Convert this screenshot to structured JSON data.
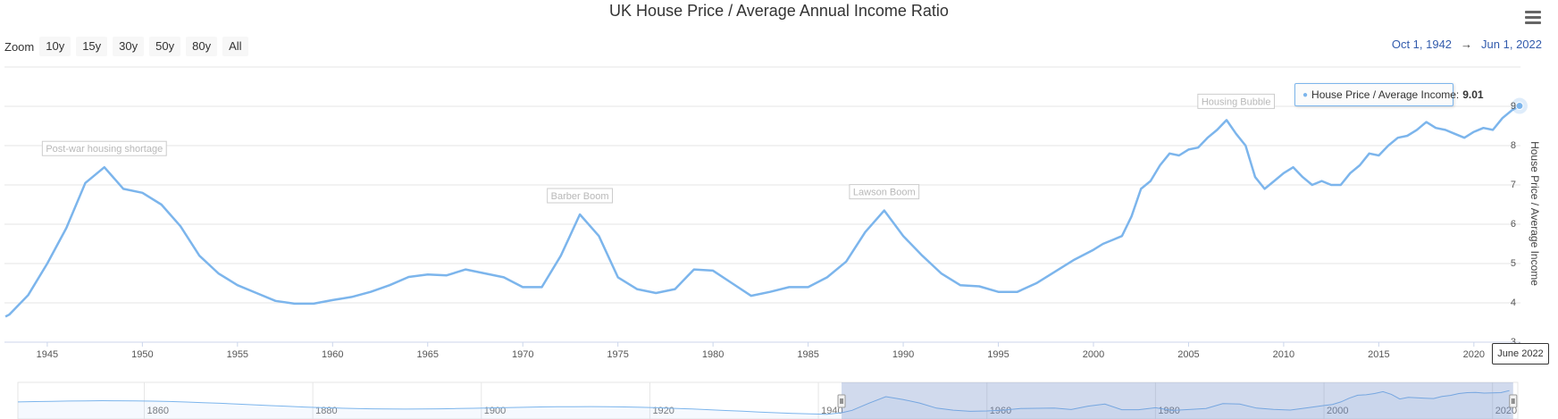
{
  "chart_data": {
    "type": "line",
    "title": "UK House Price / Average Annual Income Ratio",
    "ylabel": "House Price / Average Income",
    "xlim": [
      1942.75,
      2022.45
    ],
    "ylim": [
      3,
      10
    ],
    "y_ticks": [
      3,
      4,
      5,
      6,
      7,
      8,
      9
    ],
    "x_ticks": [
      1945,
      1950,
      1955,
      1960,
      1965,
      1970,
      1975,
      1980,
      1985,
      1990,
      1995,
      2000,
      2005,
      2010,
      2015,
      2020
    ],
    "grid": "horizontal",
    "series": [
      {
        "name": "House Price / Average Income",
        "color": "#7cb5ec",
        "x": [
          1942.8,
          1943,
          1944,
          1945,
          1946,
          1947,
          1948,
          1949,
          1950,
          1951,
          1952,
          1953,
          1954,
          1955,
          1956,
          1957,
          1958,
          1959,
          1960,
          1961,
          1962,
          1963,
          1964,
          1965,
          1966,
          1967,
          1968,
          1969,
          1970,
          1971,
          1972,
          1973,
          1974,
          1975,
          1976,
          1977,
          1978,
          1979,
          1980,
          1981,
          1982,
          1983,
          1984,
          1985,
          1986,
          1987,
          1988,
          1989,
          1990,
          1991,
          1992,
          1993,
          1994,
          1995,
          1996,
          1997,
          1998,
          1999,
          2000,
          2000.5,
          2001,
          2001.5,
          2002,
          2002.5,
          2003,
          2003.5,
          2004,
          2004.5,
          2005,
          2005.5,
          2006,
          2006.5,
          2007,
          2007.5,
          2008,
          2008.5,
          2009,
          2009.5,
          2010,
          2010.5,
          2011,
          2011.5,
          2012,
          2012.5,
          2013,
          2013.5,
          2014,
          2014.5,
          2015,
          2015.5,
          2016,
          2016.5,
          2017,
          2017.5,
          2018,
          2018.5,
          2019,
          2019.5,
          2020,
          2020.5,
          2021,
          2021.5,
          2022,
          2022.4
        ],
        "y": [
          3.65,
          3.7,
          4.2,
          5.0,
          5.9,
          7.05,
          7.45,
          6.9,
          6.8,
          6.5,
          5.95,
          5.2,
          4.75,
          4.45,
          4.25,
          4.05,
          3.98,
          3.98,
          4.07,
          4.15,
          4.28,
          4.45,
          4.66,
          4.72,
          4.7,
          4.85,
          4.75,
          4.65,
          4.4,
          4.4,
          5.2,
          6.25,
          5.7,
          4.65,
          4.35,
          4.25,
          4.35,
          4.85,
          4.82,
          4.5,
          4.18,
          4.28,
          4.4,
          4.4,
          4.65,
          5.05,
          5.8,
          6.35,
          5.7,
          5.2,
          4.75,
          4.45,
          4.42,
          4.28,
          4.28,
          4.5,
          4.8,
          5.1,
          5.35,
          5.5,
          5.6,
          5.7,
          6.2,
          6.9,
          7.1,
          7.5,
          7.8,
          7.75,
          7.9,
          7.95,
          8.2,
          8.4,
          8.65,
          8.3,
          8.0,
          7.2,
          6.9,
          7.1,
          7.3,
          7.45,
          7.2,
          7.0,
          7.1,
          7.0,
          7.0,
          7.3,
          7.5,
          7.8,
          7.75,
          8.0,
          8.2,
          8.25,
          8.4,
          8.6,
          8.45,
          8.4,
          8.3,
          8.2,
          8.35,
          8.45,
          8.4,
          8.7,
          8.9,
          9.01
        ]
      }
    ],
    "annotations": [
      {
        "text": "Post-war housing shortage",
        "x": 1948.0,
        "y": 7.45
      },
      {
        "text": "Barber Boom",
        "x": 1973.0,
        "y": 6.25
      },
      {
        "text": "Lawson Boom",
        "x": 1989.0,
        "y": 6.35
      },
      {
        "text": "Housing Bubble",
        "x": 2007.5,
        "y": 8.65
      }
    ],
    "navigator": {
      "x_ticks": [
        1860,
        1880,
        1900,
        1920,
        1940,
        1960,
        1980,
        2000,
        2020
      ],
      "xlim": [
        1845,
        2023
      ],
      "selected_range": [
        1942.75,
        2022.45
      ]
    }
  },
  "zoom": {
    "label": "Zoom",
    "buttons": [
      "10y",
      "15y",
      "30y",
      "50y",
      "80y",
      "All"
    ]
  },
  "range": {
    "from": "Oct 1, 1942",
    "arrow": "→",
    "to": "Jun 1, 2022"
  },
  "tooltip": {
    "series_label": "House Price / Average Income:",
    "value": "9.01"
  },
  "crosshair_label": "June 2022",
  "menu_icon": "hamburger-menu-icon"
}
